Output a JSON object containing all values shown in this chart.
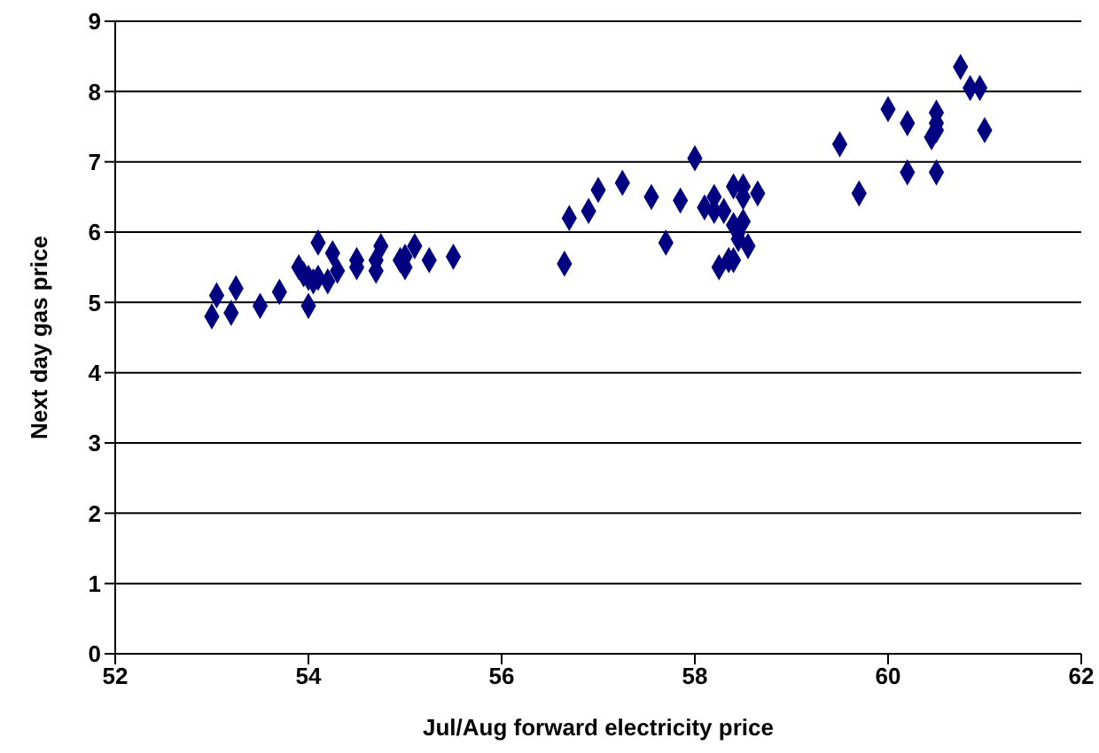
{
  "chart_data": {
    "type": "scatter",
    "xlabel": "Jul/Aug forward electricity price",
    "ylabel": "Next day gas price",
    "xlim": [
      52,
      62
    ],
    "xticks": [
      52,
      54,
      56,
      58,
      60,
      62
    ],
    "ylim": [
      0,
      9
    ],
    "yticks": [
      0,
      1,
      2,
      3,
      4,
      5,
      6,
      7,
      8,
      9
    ],
    "grid": "y",
    "marker": "diamond",
    "legend": false,
    "series": [
      {
        "color": "#000080",
        "x": [
          53.0,
          53.05,
          53.2,
          53.25,
          53.5,
          53.7,
          53.9,
          53.95,
          54.0,
          54.0,
          54.05,
          54.1,
          54.1,
          54.2,
          54.25,
          54.3,
          54.5,
          54.5,
          54.7,
          54.7,
          54.75,
          54.95,
          55.0,
          55.0,
          55.1,
          55.25,
          55.5,
          56.65,
          56.7,
          56.9,
          57.0,
          57.25,
          57.55,
          57.7,
          57.85,
          58.0,
          58.1,
          58.2,
          58.2,
          58.25,
          58.3,
          58.35,
          58.4,
          58.4,
          58.45,
          58.45,
          58.5,
          58.5,
          58.5,
          58.55,
          58.65,
          58.4,
          59.5,
          59.7,
          60.0,
          60.2,
          60.2,
          60.45,
          60.5,
          60.5,
          60.5,
          60.5,
          60.75,
          60.85,
          60.95,
          61.0
        ],
        "values": [
          4.8,
          5.1,
          4.85,
          5.2,
          4.95,
          5.15,
          5.5,
          5.4,
          5.35,
          4.95,
          5.3,
          5.35,
          5.85,
          5.3,
          5.7,
          5.45,
          5.6,
          5.5,
          5.45,
          5.6,
          5.8,
          5.6,
          5.5,
          5.65,
          5.8,
          5.6,
          5.65,
          5.55,
          6.2,
          6.3,
          6.6,
          6.7,
          6.5,
          5.85,
          6.45,
          7.05,
          6.35,
          6.3,
          6.5,
          5.5,
          6.3,
          5.6,
          5.6,
          6.1,
          5.9,
          6.0,
          6.5,
          6.15,
          6.65,
          5.8,
          6.55,
          6.65,
          7.25,
          6.55,
          7.75,
          6.85,
          7.55,
          7.35,
          6.85,
          7.55,
          7.7,
          7.45,
          8.35,
          8.05,
          8.05,
          7.45
        ]
      }
    ]
  }
}
